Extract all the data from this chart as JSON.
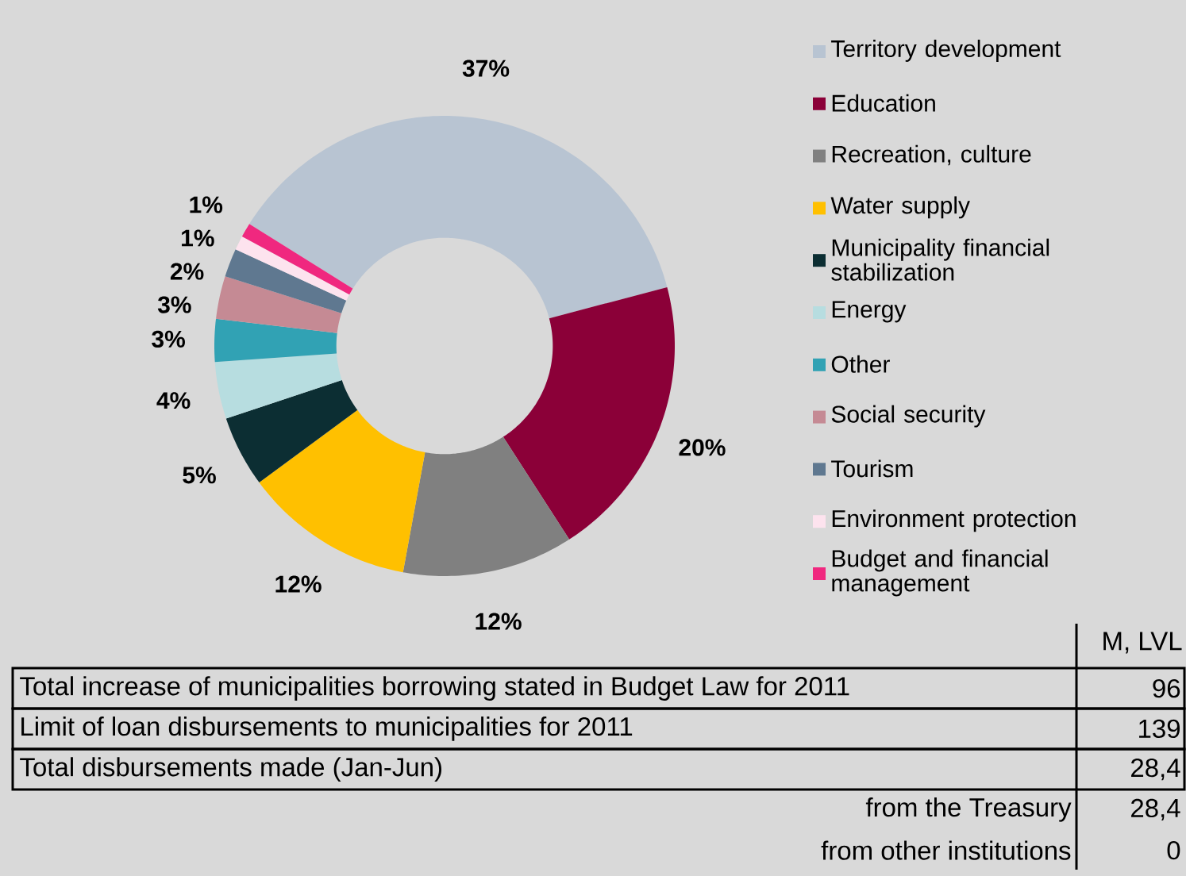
{
  "chart_data": {
    "type": "donut",
    "categories": [
      "Territory development",
      "Education",
      "Recreation, culture",
      "Water supply",
      "Municipality financial stabilization",
      "Energy",
      "Other",
      "Social security",
      "Tourism",
      "Environment protection",
      "Budget and financial management"
    ],
    "values": [
      37,
      20,
      12,
      12,
      5,
      4,
      3,
      3,
      2,
      1,
      1
    ],
    "value_labels": [
      "37%",
      "20%",
      "12%",
      "12%",
      "5%",
      "4%",
      "3%",
      "3%",
      "2%",
      "1%",
      "1%"
    ],
    "colors": [
      "#b8c4d2",
      "#8b0038",
      "#808080",
      "#ffc000",
      "#0c2e33",
      "#b7dde0",
      "#31a2b4",
      "#c58a94",
      "#5f7890",
      "#fde3ee",
      "#f0287f"
    ],
    "legend": "right",
    "annotations": [
      "M, LVL",
      "Total increase of municipalities borrowing stated in Budget Law for 2011",
      "96",
      "Limit of loan disbursements to municipalities for 2011",
      "139",
      "Total disbursements made (Jan-Jun)",
      "28,4",
      "from the Treasury",
      "28,4",
      "from other institutions",
      "0"
    ]
  }
}
